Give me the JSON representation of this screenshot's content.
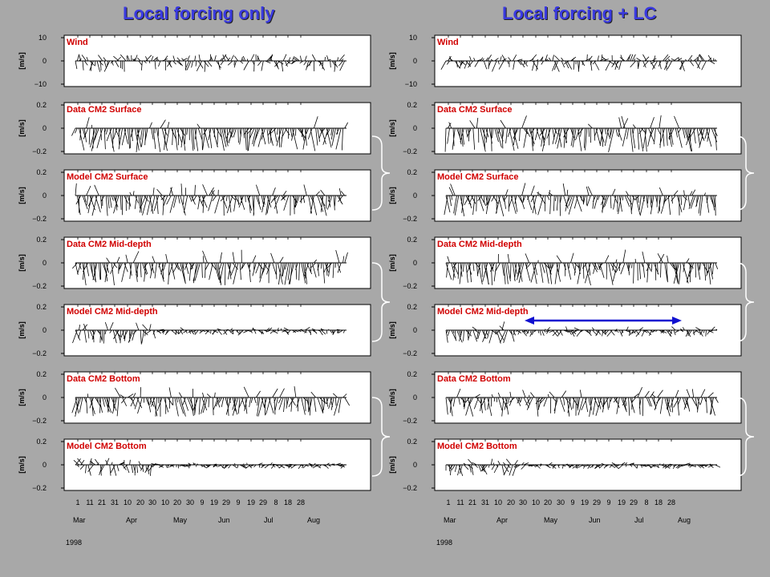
{
  "titles": {
    "left": "Local forcing only",
    "right": "Local forcing + LC"
  },
  "colors": {
    "title": "#3a3ae0",
    "panel_label": "#d00000",
    "background": "#a8a8a8",
    "plot_bg": "#ffffff",
    "bracket": "#ffffff",
    "arrow": "#1010d0"
  },
  "chart_data": [
    {
      "type": "line",
      "name": "Local forcing only",
      "panels": [
        {
          "label": "Wind",
          "ylabel": "[m/s]",
          "yticks": [
            "10",
            "0",
            "−10"
          ],
          "ylim": [
            -10,
            10
          ]
        },
        {
          "label": "Data CM2 Surface",
          "ylabel": "[m/s]",
          "yticks": [
            "0.2",
            "0",
            "−0.2"
          ],
          "ylim": [
            -0.2,
            0.2
          ]
        },
        {
          "label": "Model CM2 Surface",
          "ylabel": "[m/s]",
          "yticks": [
            "0.2",
            "0",
            "−0.2"
          ],
          "ylim": [
            -0.2,
            0.2
          ]
        },
        {
          "label": "Data CM2 Mid-depth",
          "ylabel": "[m/s]",
          "yticks": [
            "0.2",
            "0",
            "−0.2"
          ],
          "ylim": [
            -0.2,
            0.2
          ]
        },
        {
          "label": "Model CM2 Mid-depth",
          "ylabel": "[m/s]",
          "yticks": [
            "0.2",
            "0",
            "−0.2"
          ],
          "ylim": [
            -0.2,
            0.2
          ]
        },
        {
          "label": "Data CM2 Bottom",
          "ylabel": "[m/s]",
          "yticks": [
            "0.2",
            "0",
            "−0.2"
          ],
          "ylim": [
            -0.2,
            0.2
          ]
        },
        {
          "label": "Model CM2 Bottom",
          "ylabel": "[m/s]",
          "yticks": [
            "0.2",
            "0",
            "−0.2"
          ],
          "ylim": [
            -0.2,
            0.2
          ]
        }
      ],
      "x_day_ticks": [
        "1",
        "11",
        "21",
        "31",
        "10",
        "20",
        "30",
        "10",
        "20",
        "30",
        "9",
        "19",
        "29",
        "9",
        "19",
        "29",
        "8",
        "18",
        "28"
      ],
      "x_month_ticks": [
        "Mar",
        "Apr",
        "May",
        "Jun",
        "Jul",
        "Aug"
      ],
      "x_year": "1998"
    },
    {
      "type": "line",
      "name": "Local forcing + LC",
      "panels": [
        {
          "label": "Wind",
          "ylabel": "[m/s]",
          "yticks": [
            "10",
            "0",
            "−10"
          ],
          "ylim": [
            -10,
            10
          ]
        },
        {
          "label": "Data CM2 Surface",
          "ylabel": "[m/s]",
          "yticks": [
            "0.2",
            "0",
            "−0.2"
          ],
          "ylim": [
            -0.2,
            0.2
          ]
        },
        {
          "label": "Model CM2 Surface",
          "ylabel": "[m/s]",
          "yticks": [
            "0.2",
            "0",
            "−0.2"
          ],
          "ylim": [
            -0.2,
            0.2
          ]
        },
        {
          "label": "Data CM2 Mid-depth",
          "ylabel": "[m/s]",
          "yticks": [
            "0.2",
            "0",
            "−0.2"
          ],
          "ylim": [
            -0.2,
            0.2
          ]
        },
        {
          "label": "Model CM2 Mid-depth",
          "ylabel": "[m/s]",
          "yticks": [
            "0.2",
            "0",
            "−0.2"
          ],
          "ylim": [
            -0.2,
            0.2
          ]
        },
        {
          "label": "Data CM2 Bottom",
          "ylabel": "[m/s]",
          "yticks": [
            "0.2",
            "0",
            "−0.2"
          ],
          "ylim": [
            -0.2,
            0.2
          ]
        },
        {
          "label": "Model CM2 Bottom",
          "ylabel": "[m/s]",
          "yticks": [
            "0.2",
            "0",
            "−0.2"
          ],
          "ylim": [
            -0.2,
            0.2
          ]
        }
      ],
      "x_day_ticks": [
        "1",
        "11",
        "21",
        "31",
        "10",
        "20",
        "30",
        "10",
        "20",
        "30",
        "9",
        "19",
        "29",
        "9",
        "19",
        "29",
        "8",
        "18",
        "28"
      ],
      "x_month_ticks": [
        "Mar",
        "Apr",
        "May",
        "Jun",
        "Jul",
        "Aug"
      ],
      "x_year": "1998"
    }
  ]
}
